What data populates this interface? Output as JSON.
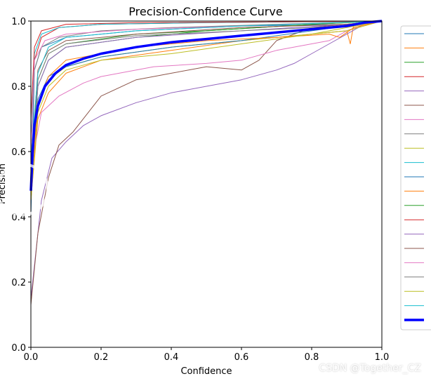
{
  "chart_data": {
    "type": "line",
    "title": "Precision-Confidence Curve",
    "xlabel": "Confidence",
    "ylabel": "Precision",
    "xlim": [
      0,
      1
    ],
    "ylim": [
      0,
      1
    ],
    "xticks": [
      "0.0",
      "0.2",
      "0.4",
      "0.6",
      "0.8",
      "1.0"
    ],
    "yticks": [
      "0.0",
      "0.2",
      "0.4",
      "0.6",
      "0.8",
      "1.0"
    ],
    "legend_position": "right (partially cropped)",
    "series": [
      {
        "name": "",
        "color": "#1f77b4",
        "points": [
          [
            0,
            0.4
          ],
          [
            0.01,
            0.85
          ],
          [
            0.03,
            0.92
          ],
          [
            0.1,
            0.95
          ],
          [
            0.3,
            0.97
          ],
          [
            0.6,
            0.985
          ],
          [
            0.92,
            0.99
          ],
          [
            1,
            1
          ]
        ]
      },
      {
        "name": "",
        "color": "#ff7f0e",
        "points": [
          [
            0,
            0.45
          ],
          [
            0.02,
            0.7
          ],
          [
            0.05,
            0.78
          ],
          [
            0.1,
            0.84
          ],
          [
            0.2,
            0.88
          ],
          [
            0.4,
            0.91
          ],
          [
            0.6,
            0.94
          ],
          [
            0.8,
            0.96
          ],
          [
            0.9,
            0.97
          ],
          [
            0.91,
            0.93
          ],
          [
            0.92,
            0.99
          ],
          [
            1,
            1
          ]
        ]
      },
      {
        "name": "",
        "color": "#2ca02c",
        "points": [
          [
            0,
            0.5
          ],
          [
            0.02,
            0.8
          ],
          [
            0.05,
            0.88
          ],
          [
            0.1,
            0.92
          ],
          [
            0.3,
            0.95
          ],
          [
            0.5,
            0.97
          ],
          [
            0.8,
            0.99
          ],
          [
            1,
            1
          ]
        ]
      },
      {
        "name": "",
        "color": "#d62728",
        "points": [
          [
            0,
            0.6
          ],
          [
            0.01,
            0.88
          ],
          [
            0.03,
            0.95
          ],
          [
            0.08,
            0.98
          ],
          [
            0.2,
            0.99
          ],
          [
            0.5,
            0.995
          ],
          [
            1,
            1
          ]
        ]
      },
      {
        "name": "",
        "color": "#9467bd",
        "points": [
          [
            0,
            0.15
          ],
          [
            0.03,
            0.45
          ],
          [
            0.06,
            0.58
          ],
          [
            0.1,
            0.63
          ],
          [
            0.15,
            0.68
          ],
          [
            0.2,
            0.71
          ],
          [
            0.3,
            0.75
          ],
          [
            0.4,
            0.78
          ],
          [
            0.5,
            0.8
          ],
          [
            0.6,
            0.82
          ],
          [
            0.7,
            0.85
          ],
          [
            0.75,
            0.87
          ],
          [
            0.8,
            0.9
          ],
          [
            0.85,
            0.93
          ],
          [
            0.9,
            0.96
          ],
          [
            0.95,
            0.99
          ],
          [
            1,
            1
          ]
        ]
      },
      {
        "name": "",
        "color": "#8c564b",
        "points": [
          [
            0,
            0.13
          ],
          [
            0.02,
            0.35
          ],
          [
            0.05,
            0.52
          ],
          [
            0.08,
            0.62
          ],
          [
            0.12,
            0.66
          ],
          [
            0.2,
            0.77
          ],
          [
            0.3,
            0.82
          ],
          [
            0.4,
            0.84
          ],
          [
            0.5,
            0.86
          ],
          [
            0.6,
            0.85
          ],
          [
            0.65,
            0.88
          ],
          [
            0.7,
            0.94
          ],
          [
            0.75,
            0.96
          ],
          [
            0.8,
            0.98
          ],
          [
            0.9,
            0.99
          ],
          [
            1,
            1
          ]
        ]
      },
      {
        "name": "",
        "color": "#e377c2",
        "points": [
          [
            0,
            0.55
          ],
          [
            0.03,
            0.72
          ],
          [
            0.08,
            0.77
          ],
          [
            0.15,
            0.81
          ],
          [
            0.2,
            0.83
          ],
          [
            0.35,
            0.86
          ],
          [
            0.5,
            0.87
          ],
          [
            0.6,
            0.88
          ],
          [
            0.7,
            0.91
          ],
          [
            0.8,
            0.93
          ],
          [
            0.85,
            0.94
          ],
          [
            0.9,
            0.97
          ],
          [
            0.95,
            0.99
          ],
          [
            1,
            1
          ]
        ]
      },
      {
        "name": "",
        "color": "#7f7f7f",
        "points": [
          [
            0,
            0.6
          ],
          [
            0.01,
            0.85
          ],
          [
            0.03,
            0.92
          ],
          [
            0.08,
            0.95
          ],
          [
            0.2,
            0.97
          ],
          [
            0.4,
            0.98
          ],
          [
            0.7,
            0.99
          ],
          [
            1,
            1
          ]
        ]
      },
      {
        "name": "",
        "color": "#bcbd22",
        "points": [
          [
            0,
            0.52
          ],
          [
            0.02,
            0.74
          ],
          [
            0.05,
            0.82
          ],
          [
            0.1,
            0.86
          ],
          [
            0.2,
            0.89
          ],
          [
            0.4,
            0.92
          ],
          [
            0.6,
            0.94
          ],
          [
            0.8,
            0.96
          ],
          [
            0.9,
            0.97
          ],
          [
            1,
            1
          ]
        ]
      },
      {
        "name": "",
        "color": "#17becf",
        "points": [
          [
            0,
            0.62
          ],
          [
            0.01,
            0.9
          ],
          [
            0.03,
            0.96
          ],
          [
            0.08,
            0.98
          ],
          [
            0.2,
            0.99
          ],
          [
            0.5,
            0.995
          ],
          [
            1,
            1
          ]
        ]
      },
      {
        "name": "",
        "color": "#1f77b4",
        "points": [
          [
            0,
            0.5
          ],
          [
            0.02,
            0.76
          ],
          [
            0.05,
            0.83
          ],
          [
            0.1,
            0.86
          ],
          [
            0.2,
            0.89
          ],
          [
            0.4,
            0.92
          ],
          [
            0.6,
            0.94
          ],
          [
            0.8,
            0.97
          ],
          [
            1,
            1
          ]
        ]
      },
      {
        "name": "",
        "color": "#ff7f0e",
        "points": [
          [
            0,
            0.48
          ],
          [
            0.02,
            0.75
          ],
          [
            0.05,
            0.83
          ],
          [
            0.1,
            0.88
          ],
          [
            0.3,
            0.92
          ],
          [
            0.5,
            0.94
          ],
          [
            0.7,
            0.95
          ],
          [
            0.85,
            0.96
          ],
          [
            0.88,
            0.95
          ],
          [
            0.92,
            0.98
          ],
          [
            1,
            1
          ]
        ]
      },
      {
        "name": "",
        "color": "#2ca02c",
        "points": [
          [
            0,
            0.55
          ],
          [
            0.02,
            0.82
          ],
          [
            0.05,
            0.9
          ],
          [
            0.1,
            0.93
          ],
          [
            0.3,
            0.96
          ],
          [
            0.5,
            0.97
          ],
          [
            0.8,
            0.99
          ],
          [
            1,
            1
          ]
        ]
      },
      {
        "name": "",
        "color": "#d62728",
        "points": [
          [
            0,
            0.7
          ],
          [
            0.01,
            0.92
          ],
          [
            0.03,
            0.97
          ],
          [
            0.1,
            0.99
          ],
          [
            0.3,
            0.995
          ],
          [
            1,
            1
          ]
        ]
      },
      {
        "name": "",
        "color": "#9467bd",
        "points": [
          [
            0,
            0.5
          ],
          [
            0.02,
            0.8
          ],
          [
            0.05,
            0.88
          ],
          [
            0.1,
            0.92
          ],
          [
            0.3,
            0.95
          ],
          [
            0.6,
            0.97
          ],
          [
            0.9,
            0.99
          ],
          [
            1,
            1
          ]
        ]
      },
      {
        "name": "",
        "color": "#8c564b",
        "points": [
          [
            0,
            0.55
          ],
          [
            0.02,
            0.85
          ],
          [
            0.05,
            0.91
          ],
          [
            0.1,
            0.94
          ],
          [
            0.3,
            0.96
          ],
          [
            0.6,
            0.98
          ],
          [
            0.9,
            0.99
          ],
          [
            1,
            1
          ]
        ]
      },
      {
        "name": "",
        "color": "#e377c2",
        "points": [
          [
            0,
            0.6
          ],
          [
            0.01,
            0.88
          ],
          [
            0.04,
            0.94
          ],
          [
            0.1,
            0.96
          ],
          [
            0.3,
            0.975
          ],
          [
            0.6,
            0.985
          ],
          [
            1,
            1
          ]
        ]
      },
      {
        "name": "",
        "color": "#7f7f7f",
        "points": [
          [
            0,
            0.5
          ],
          [
            0.02,
            0.82
          ],
          [
            0.05,
            0.9
          ],
          [
            0.1,
            0.93
          ],
          [
            0.3,
            0.955
          ],
          [
            0.6,
            0.97
          ],
          [
            0.9,
            0.985
          ],
          [
            1,
            1
          ]
        ]
      },
      {
        "name": "",
        "color": "#bcbd22",
        "points": [
          [
            0,
            0.45
          ],
          [
            0.02,
            0.72
          ],
          [
            0.05,
            0.8
          ],
          [
            0.1,
            0.85
          ],
          [
            0.2,
            0.88
          ],
          [
            0.4,
            0.9
          ],
          [
            0.6,
            0.93
          ],
          [
            0.8,
            0.96
          ],
          [
            1,
            1
          ]
        ]
      },
      {
        "name": "",
        "color": "#17becf",
        "points": [
          [
            0,
            0.58
          ],
          [
            0.02,
            0.84
          ],
          [
            0.05,
            0.92
          ],
          [
            0.1,
            0.95
          ],
          [
            0.3,
            0.97
          ],
          [
            0.6,
            0.985
          ],
          [
            1,
            1
          ]
        ]
      },
      {
        "name": "",
        "color": "#0000ff",
        "bold": true,
        "points": [
          [
            0,
            0.48
          ],
          [
            0.005,
            0.6
          ],
          [
            0.01,
            0.68
          ],
          [
            0.02,
            0.74
          ],
          [
            0.04,
            0.8
          ],
          [
            0.07,
            0.84
          ],
          [
            0.1,
            0.865
          ],
          [
            0.15,
            0.885
          ],
          [
            0.2,
            0.9
          ],
          [
            0.3,
            0.92
          ],
          [
            0.4,
            0.935
          ],
          [
            0.5,
            0.945
          ],
          [
            0.6,
            0.955
          ],
          [
            0.7,
            0.965
          ],
          [
            0.8,
            0.975
          ],
          [
            0.9,
            0.985
          ],
          [
            0.95,
            0.995
          ],
          [
            1,
            1
          ]
        ]
      }
    ]
  },
  "watermark": "CSDN @Together_CZ"
}
